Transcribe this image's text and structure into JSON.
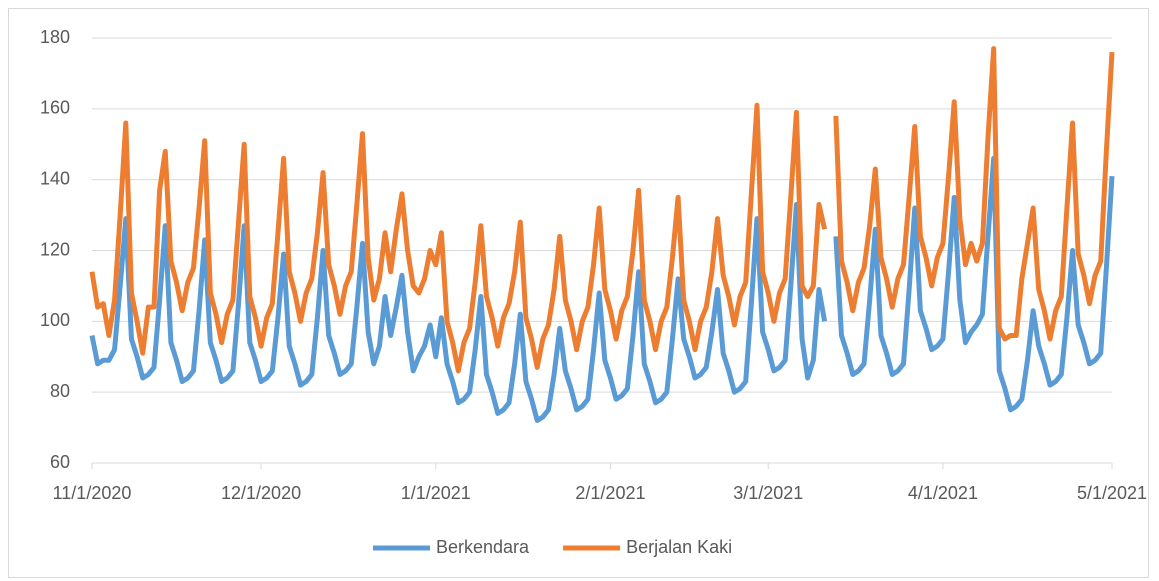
{
  "chart_data": {
    "type": "line",
    "x": [
      "11/1/2020",
      "11/2/2020",
      "11/3/2020",
      "11/4/2020",
      "11/5/2020",
      "11/6/2020",
      "11/7/2020",
      "11/8/2020",
      "11/9/2020",
      "11/10/2020",
      "11/11/2020",
      "11/12/2020",
      "11/13/2020",
      "11/14/2020",
      "11/15/2020",
      "11/16/2020",
      "11/17/2020",
      "11/18/2020",
      "11/19/2020",
      "11/20/2020",
      "11/21/2020",
      "11/22/2020",
      "11/23/2020",
      "11/24/2020",
      "11/25/2020",
      "11/26/2020",
      "11/27/2020",
      "11/28/2020",
      "11/29/2020",
      "11/30/2020",
      "12/1/2020",
      "12/2/2020",
      "12/3/2020",
      "12/4/2020",
      "12/5/2020",
      "12/6/2020",
      "12/7/2020",
      "12/8/2020",
      "12/9/2020",
      "12/10/2020",
      "12/11/2020",
      "12/12/2020",
      "12/13/2020",
      "12/14/2020",
      "12/15/2020",
      "12/16/2020",
      "12/17/2020",
      "12/18/2020",
      "12/19/2020",
      "12/20/2020",
      "12/21/2020",
      "12/22/2020",
      "12/23/2020",
      "12/24/2020",
      "12/25/2020",
      "12/26/2020",
      "12/27/2020",
      "12/28/2020",
      "12/29/2020",
      "12/30/2020",
      "12/31/2020",
      "1/1/2021",
      "1/2/2021",
      "1/3/2021",
      "1/4/2021",
      "1/5/2021",
      "1/6/2021",
      "1/7/2021",
      "1/8/2021",
      "1/9/2021",
      "1/10/2021",
      "1/11/2021",
      "1/12/2021",
      "1/13/2021",
      "1/14/2021",
      "1/15/2021",
      "1/16/2021",
      "1/17/2021",
      "1/18/2021",
      "1/19/2021",
      "1/20/2021",
      "1/21/2021",
      "1/22/2021",
      "1/23/2021",
      "1/24/2021",
      "1/25/2021",
      "1/26/2021",
      "1/27/2021",
      "1/28/2021",
      "1/29/2021",
      "1/30/2021",
      "1/31/2021",
      "2/1/2021",
      "2/2/2021",
      "2/3/2021",
      "2/4/2021",
      "2/5/2021",
      "2/6/2021",
      "2/7/2021",
      "2/8/2021",
      "2/9/2021",
      "2/10/2021",
      "2/11/2021",
      "2/12/2021",
      "2/13/2021",
      "2/14/2021",
      "2/15/2021",
      "2/16/2021",
      "2/17/2021",
      "2/18/2021",
      "2/19/2021",
      "2/20/2021",
      "2/21/2021",
      "2/22/2021",
      "2/23/2021",
      "2/24/2021",
      "2/25/2021",
      "2/26/2021",
      "2/27/2021",
      "2/28/2021",
      "3/1/2021",
      "3/2/2021",
      "3/3/2021",
      "3/4/2021",
      "3/5/2021",
      "3/6/2021",
      "3/7/2021",
      "3/8/2021",
      "3/9/2021",
      "3/10/2021",
      "3/11/2021",
      "3/12/2021",
      "3/13/2021",
      "3/14/2021",
      "3/15/2021",
      "3/16/2021",
      "3/17/2021",
      "3/18/2021",
      "3/19/2021",
      "3/20/2021",
      "3/21/2021",
      "3/22/2021",
      "3/23/2021",
      "3/24/2021",
      "3/25/2021",
      "3/26/2021",
      "3/27/2021",
      "3/28/2021",
      "3/29/2021",
      "3/30/2021",
      "3/31/2021",
      "4/1/2021",
      "4/2/2021",
      "4/3/2021",
      "4/4/2021",
      "4/5/2021",
      "4/6/2021",
      "4/7/2021",
      "4/8/2021",
      "4/9/2021",
      "4/10/2021",
      "4/11/2021",
      "4/12/2021",
      "4/13/2021",
      "4/14/2021",
      "4/15/2021",
      "4/16/2021",
      "4/17/2021",
      "4/18/2021",
      "4/19/2021",
      "4/20/2021",
      "4/21/2021",
      "4/22/2021",
      "4/23/2021",
      "4/24/2021",
      "4/25/2021",
      "4/26/2021",
      "4/27/2021",
      "4/28/2021",
      "4/29/2021",
      "4/30/2021",
      "5/1/2021"
    ],
    "series": [
      {
        "name": "Berkendara",
        "color": "#5b9bd5",
        "values": [
          96,
          88,
          89,
          89,
          92,
          110,
          129,
          95,
          90,
          84,
          85,
          87,
          106,
          127,
          94,
          89,
          83,
          84,
          86,
          103,
          123,
          94,
          89,
          83,
          84,
          86,
          105,
          127,
          94,
          89,
          83,
          84,
          86,
          101,
          119,
          93,
          88,
          82,
          83,
          85,
          101,
          120,
          96,
          91,
          85,
          86,
          88,
          104,
          122,
          97,
          88,
          93,
          107,
          96,
          104,
          113,
          97,
          86,
          90,
          93,
          99,
          90,
          101,
          88,
          83,
          77,
          78,
          80,
          92,
          107,
          85,
          80,
          74,
          75,
          77,
          88,
          102,
          83,
          78,
          72,
          73,
          75,
          85,
          98,
          86,
          81,
          75,
          76,
          78,
          92,
          108,
          89,
          84,
          78,
          79,
          81,
          96,
          114,
          88,
          83,
          77,
          78,
          80,
          95,
          112,
          95,
          90,
          84,
          85,
          87,
          97,
          109,
          91,
          86,
          80,
          81,
          83,
          105,
          129,
          97,
          92,
          86,
          87,
          89,
          110,
          133,
          95,
          84,
          89,
          109,
          100,
          null,
          124,
          96,
          91,
          85,
          86,
          88,
          106,
          126,
          96,
          91,
          85,
          86,
          88,
          109,
          132,
          103,
          98,
          92,
          93,
          95,
          114,
          135,
          106,
          94,
          97,
          99,
          102,
          124,
          146,
          86,
          81,
          75,
          76,
          78,
          89,
          103,
          93,
          88,
          82,
          83,
          85,
          101,
          120,
          99,
          94,
          88,
          89,
          91,
          115,
          141
        ]
      },
      {
        "name": "Berjalan Kaki",
        "color": "#ed7d31",
        "values": [
          114,
          104,
          105,
          96,
          106,
          130,
          156,
          108,
          100,
          91,
          104,
          104,
          137,
          148,
          117,
          111,
          103,
          111,
          115,
          132,
          151,
          108,
          102,
          94,
          102,
          106,
          128,
          150,
          107,
          101,
          93,
          101,
          105,
          125,
          146,
          114,
          108,
          100,
          108,
          112,
          125,
          142,
          116,
          110,
          102,
          110,
          114,
          133,
          153,
          118,
          106,
          112,
          125,
          114,
          126,
          136,
          120,
          110,
          108,
          112,
          120,
          116,
          125,
          100,
          94,
          86,
          94,
          98,
          111,
          127,
          107,
          101,
          93,
          101,
          105,
          114,
          128,
          101,
          95,
          87,
          95,
          99,
          109,
          124,
          106,
          100,
          92,
          100,
          104,
          116,
          132,
          109,
          103,
          95,
          103,
          107,
          120,
          137,
          106,
          100,
          92,
          100,
          104,
          118,
          135,
          106,
          100,
          92,
          100,
          104,
          114,
          129,
          113,
          107,
          99,
          107,
          111,
          136,
          161,
          114,
          108,
          100,
          108,
          112,
          135,
          159,
          110,
          107,
          110,
          133,
          126,
          null,
          158,
          117,
          111,
          103,
          111,
          115,
          127,
          143,
          118,
          112,
          104,
          112,
          116,
          135,
          155,
          124,
          118,
          110,
          118,
          122,
          141,
          162,
          129,
          116,
          122,
          117,
          122,
          152,
          177,
          98,
          95,
          96,
          96,
          112,
          122,
          132,
          109,
          103,
          95,
          103,
          107,
          132,
          156,
          119,
          113,
          105,
          113,
          117,
          148,
          176
        ]
      }
    ],
    "xlim": [
      "11/1/2020",
      "5/1/2021"
    ],
    "xticks": [
      "11/1/2020",
      "12/1/2020",
      "1/1/2021",
      "2/1/2021",
      "3/1/2021",
      "4/1/2021",
      "5/1/2021"
    ],
    "ylim": [
      60,
      180
    ],
    "yticks": [
      60,
      80,
      100,
      120,
      140,
      160,
      180
    ],
    "grid": true,
    "legend": "bottom"
  }
}
